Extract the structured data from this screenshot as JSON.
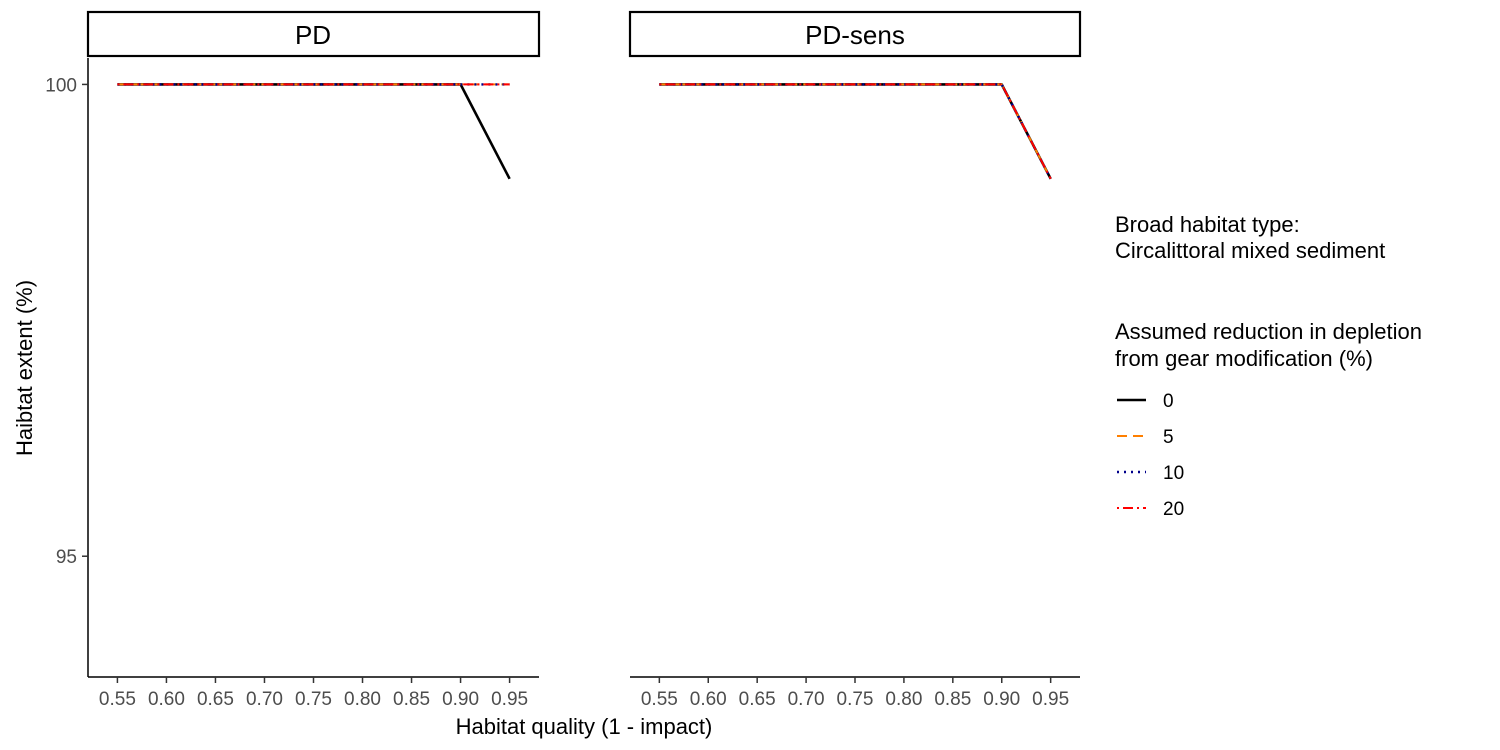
{
  "chart_data": {
    "type": "line",
    "x": [
      0.55,
      0.6,
      0.65,
      0.7,
      0.75,
      0.8,
      0.85,
      0.9,
      0.95
    ],
    "x_tick_labels": [
      "0.55",
      "0.60",
      "0.65",
      "0.70",
      "0.75",
      "0.80",
      "0.85",
      "0.90",
      "0.95"
    ],
    "xlabel": "Habitat quality (1 - impact)",
    "ylabel": "Haibtat extent (%)",
    "y_ticks": [
      95,
      100
    ],
    "y_tick_labels": [
      "95",
      "100"
    ],
    "xlim": [
      0.52,
      0.98
    ],
    "ylim": [
      93.72,
      100.28
    ],
    "grid": false,
    "legend_position": "right",
    "legend_subtitle_label": "Broad habitat type:",
    "legend_subtitle_value": "Circalittoral mixed sediment",
    "legend_title_line1": "Assumed reduction in depletion",
    "legend_title_line2": "from gear modification (%)",
    "series_styles": [
      {
        "name": "0",
        "color": "#000000",
        "dash": "solid"
      },
      {
        "name": "5",
        "color": "#FF7F00",
        "dash": "dashed"
      },
      {
        "name": "10",
        "color": "#00008B",
        "dash": "dotted"
      },
      {
        "name": "20",
        "color": "#FF0000",
        "dash": "dotdash"
      }
    ],
    "facets": [
      {
        "label": "PD",
        "series": [
          {
            "name": "0",
            "values": [
              100,
              100,
              100,
              100,
              100,
              100,
              100,
              100,
              99.0
            ]
          },
          {
            "name": "5",
            "values": [
              100,
              100,
              100,
              100,
              100,
              100,
              100,
              100,
              100
            ]
          },
          {
            "name": "10",
            "values": [
              100,
              100,
              100,
              100,
              100,
              100,
              100,
              100,
              100
            ]
          },
          {
            "name": "20",
            "values": [
              100,
              100,
              100,
              100,
              100,
              100,
              100,
              100,
              100
            ]
          }
        ]
      },
      {
        "label": "PD-sens",
        "series": [
          {
            "name": "0",
            "values": [
              100,
              100,
              100,
              100,
              100,
              100,
              100,
              100,
              99.0
            ]
          },
          {
            "name": "5",
            "values": [
              100,
              100,
              100,
              100,
              100,
              100,
              100,
              100,
              99.0
            ]
          },
          {
            "name": "10",
            "values": [
              100,
              100,
              100,
              100,
              100,
              100,
              100,
              100,
              99.0
            ]
          },
          {
            "name": "20",
            "values": [
              100,
              100,
              100,
              100,
              100,
              100,
              100,
              100,
              99.0
            ]
          }
        ]
      }
    ]
  }
}
